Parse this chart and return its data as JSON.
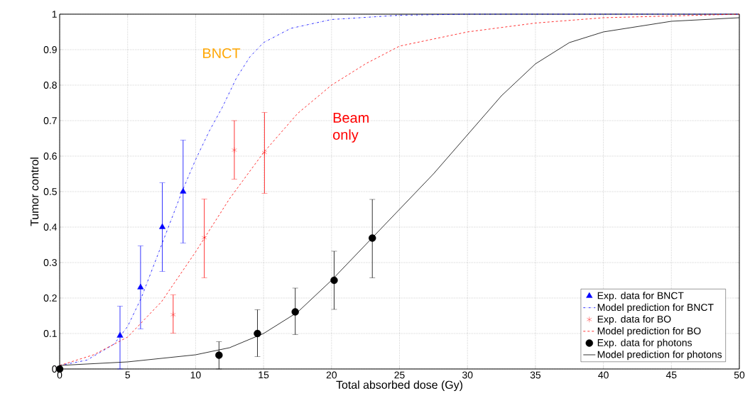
{
  "chart_data": {
    "type": "line",
    "xlabel": "Total absorbed dose (Gy)",
    "ylabel": "Tumor control",
    "xlim": [
      0,
      50
    ],
    "ylim": [
      0,
      1
    ],
    "xticks": [
      0,
      5,
      10,
      15,
      20,
      25,
      30,
      35,
      40,
      45,
      50
    ],
    "yticks": [
      0,
      0.1,
      0.2,
      0.3,
      0.4,
      0.5,
      0.6,
      0.7,
      0.8,
      0.9,
      1
    ],
    "grid": true,
    "legend": "bottom right",
    "annotations": [
      "BNCT",
      "Beam only"
    ],
    "series": [
      {
        "name": "Exp. data for BNCT",
        "type": "scatter",
        "marker": "triangle",
        "color": "#0000ff",
        "x": [
          4.44,
          5.95,
          7.55,
          9.08
        ],
        "values": [
          0.094,
          0.23,
          0.4,
          0.5
        ],
        "errors": [
          [
            0.0,
            0.177
          ],
          [
            0.113,
            0.347
          ],
          [
            0.275,
            0.525
          ],
          [
            0.355,
            0.645
          ]
        ]
      },
      {
        "name": "Model prediction for BNCT",
        "type": "line",
        "line_style": "dashdot",
        "color": "#0000ff",
        "x": [
          0,
          2,
          4,
          5,
          6,
          7,
          8,
          9,
          10,
          11,
          12,
          13,
          14,
          15,
          17,
          20,
          25,
          30,
          50
        ],
        "values": [
          0.01,
          0.025,
          0.07,
          0.12,
          0.2,
          0.3,
          0.4,
          0.5,
          0.59,
          0.67,
          0.74,
          0.82,
          0.88,
          0.92,
          0.96,
          0.985,
          0.997,
          1.0,
          1.0
        ]
      },
      {
        "name": "Exp. data for BO",
        "type": "scatter",
        "marker": "cross",
        "color": "#ff0000",
        "x": [
          8.35,
          10.64,
          12.85,
          15.07
        ],
        "values": [
          0.153,
          0.37,
          0.617,
          0.61
        ],
        "errors": [
          [
            0.101,
            0.209
          ],
          [
            0.257,
            0.479
          ],
          [
            0.535,
            0.7
          ],
          [
            0.495,
            0.723
          ]
        ]
      },
      {
        "name": "Model prediction for BO",
        "type": "line",
        "line_style": "dashed",
        "color": "#ff0000",
        "x": [
          0,
          2.5,
          5,
          7.5,
          10,
          12.5,
          15,
          17.5,
          20,
          22.5,
          25,
          30,
          35,
          40,
          45,
          50
        ],
        "values": [
          0.01,
          0.04,
          0.09,
          0.19,
          0.33,
          0.48,
          0.61,
          0.72,
          0.8,
          0.86,
          0.91,
          0.95,
          0.975,
          0.99,
          0.995,
          1.0
        ]
      },
      {
        "name": "Exp. data for photons",
        "type": "scatter",
        "marker": "circle",
        "color": "#000000",
        "x": [
          0,
          11.72,
          14.55,
          17.33,
          20.19,
          23.0
        ],
        "values": [
          0,
          0.039,
          0.1,
          0.161,
          0.25,
          0.369
        ],
        "errors": [
          null,
          [
            0.0,
            0.077
          ],
          [
            0.035,
            0.167
          ],
          [
            0.097,
            0.228
          ],
          [
            0.168,
            0.332
          ],
          [
            0.257,
            0.478
          ]
        ]
      },
      {
        "name": "Model prediction for photons",
        "type": "line",
        "line_style": "solid",
        "color": "#000000",
        "x": [
          0,
          5,
          10,
          12.5,
          15,
          17.5,
          20,
          22.5,
          25,
          27.5,
          30,
          32.5,
          35,
          37.5,
          40,
          45,
          50
        ],
        "values": [
          0.01,
          0.02,
          0.04,
          0.06,
          0.1,
          0.16,
          0.25,
          0.35,
          0.45,
          0.55,
          0.66,
          0.77,
          0.86,
          0.92,
          0.95,
          0.98,
          0.99
        ]
      }
    ]
  }
}
